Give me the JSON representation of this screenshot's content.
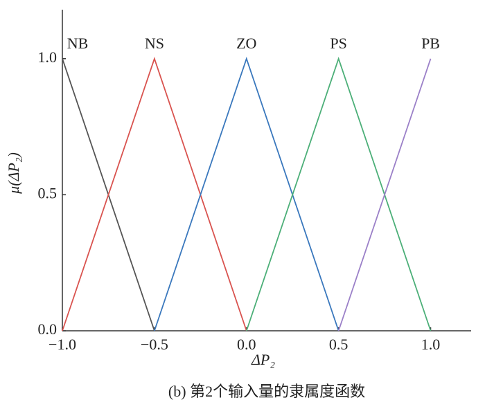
{
  "chart_data": {
    "type": "line",
    "x_label": "ΔP₂",
    "y_label": "μ(ΔP₂)",
    "caption": "(b) 第2个输入量的隶属度函数",
    "series": [
      {
        "name": "NB",
        "color": "#555555",
        "x": [
          -1,
          -0.5
        ],
        "values": [
          1,
          0
        ]
      },
      {
        "name": "NS",
        "color": "#d9534f",
        "x": [
          -1,
          -0.5,
          0
        ],
        "values": [
          0,
          1,
          0
        ]
      },
      {
        "name": "ZO",
        "color": "#3a78bd",
        "x": [
          -0.5,
          0,
          0.5
        ],
        "values": [
          0,
          1,
          0
        ]
      },
      {
        "name": "PS",
        "color": "#4caf78",
        "x": [
          0,
          0.5,
          1
        ],
        "values": [
          0,
          1,
          0
        ]
      },
      {
        "name": "PB",
        "color": "#9b80c8",
        "x": [
          0.5,
          1
        ],
        "values": [
          0,
          1
        ]
      }
    ],
    "xlim": [
      -1,
      1.22
    ],
    "ylim": [
      0,
      1.18
    ],
    "xticks": [
      {
        "value": -1,
        "label": "−1.0"
      },
      {
        "value": -0.5,
        "label": "−0.5"
      },
      {
        "value": 0,
        "label": "0.0"
      },
      {
        "value": 0.5,
        "label": "0.5"
      },
      {
        "value": 1,
        "label": "1.0"
      }
    ],
    "yticks": [
      {
        "value": 0,
        "label": "0.0"
      },
      {
        "value": 0.5,
        "label": "0.5"
      },
      {
        "value": 1,
        "label": "1.0"
      }
    ]
  }
}
